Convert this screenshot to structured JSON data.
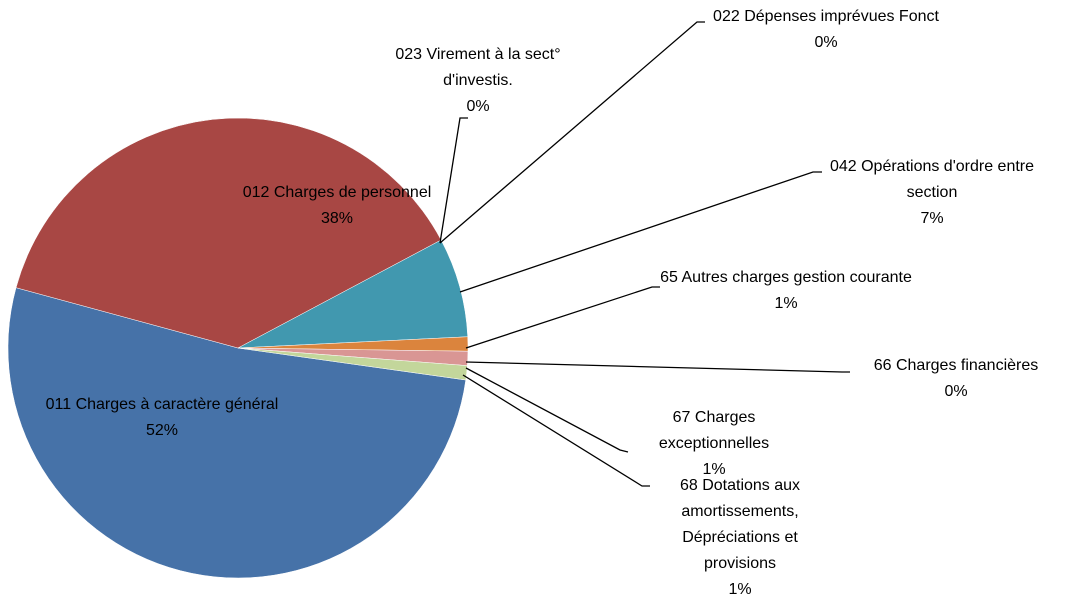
{
  "chart_data": {
    "type": "pie",
    "categories": [
      "011 Charges à caractère général",
      "012 Charges de personnel",
      "023 Virement à la sect° d'investis.",
      "022 Dépenses imprévues Fonct",
      "042 Opérations d'ordre entre section",
      "65 Autres charges gestion courante",
      "66 Charges financières",
      "67 Charges exceptionnelles",
      "68 Dotations aux amortissements, Dépréciations et provisions"
    ],
    "values": [
      52,
      38,
      0,
      0,
      7,
      1,
      0,
      1,
      1
    ],
    "value_labels": [
      "52%",
      "38%",
      "0%",
      "0%",
      "7%",
      "1%",
      "0%",
      "1%",
      "1%"
    ],
    "colors": [
      "#4672a8",
      "#a84744",
      "#7f6aa0",
      "#8064a2",
      "#4198af",
      "#db843d",
      "#8e7cb0",
      "#d99694",
      "#c3d69b"
    ]
  }
}
